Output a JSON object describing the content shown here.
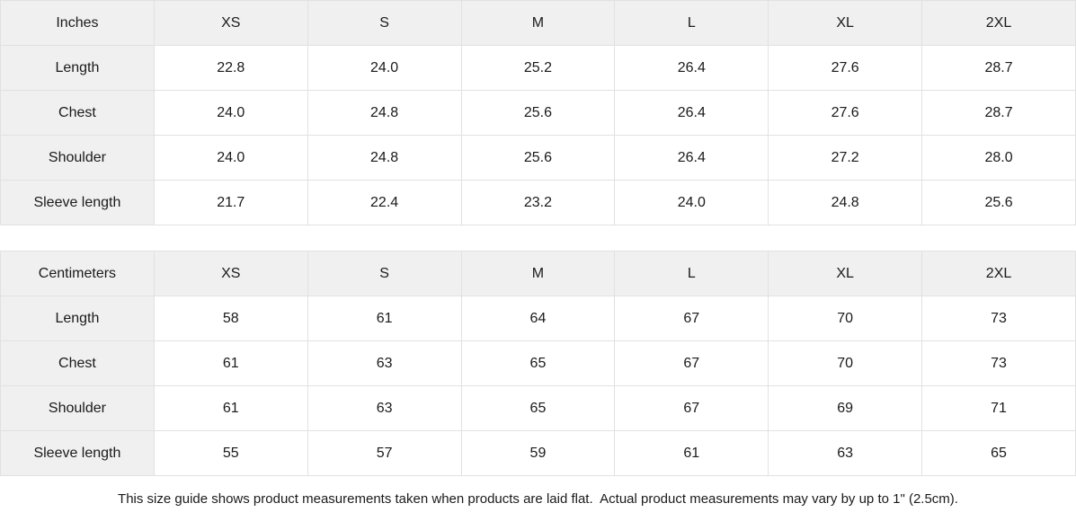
{
  "colors": {
    "background": "#ffffff",
    "header_bg": "#f0f0f1",
    "border": "#e1e1e1",
    "text": "#1a1a1a"
  },
  "chart_data": [
    {
      "type": "table",
      "title": "Inches",
      "columns": [
        "Inches",
        "XS",
        "S",
        "M",
        "L",
        "XL",
        "2XL"
      ],
      "rows": [
        [
          "Length",
          "22.8",
          "24.0",
          "25.2",
          "26.4",
          "27.6",
          "28.7"
        ],
        [
          "Chest",
          "24.0",
          "24.8",
          "25.6",
          "26.4",
          "27.6",
          "28.7"
        ],
        [
          "Shoulder",
          "24.0",
          "24.8",
          "25.6",
          "26.4",
          "27.2",
          "28.0"
        ],
        [
          "Sleeve length",
          "21.7",
          "22.4",
          "23.2",
          "24.0",
          "24.8",
          "25.6"
        ]
      ]
    },
    {
      "type": "table",
      "title": "Centimeters",
      "columns": [
        "Centimeters",
        "XS",
        "S",
        "M",
        "L",
        "XL",
        "2XL"
      ],
      "rows": [
        [
          "Length",
          "58",
          "61",
          "64",
          "67",
          "70",
          "73"
        ],
        [
          "Chest",
          "61",
          "63",
          "65",
          "67",
          "70",
          "73"
        ],
        [
          "Shoulder",
          "61",
          "63",
          "65",
          "67",
          "69",
          "71"
        ],
        [
          "Sleeve length",
          "55",
          "57",
          "59",
          "61",
          "63",
          "65"
        ]
      ]
    }
  ],
  "footer": {
    "note": "This size guide shows product measurements taken when products are laid flat.  Actual product measurements may vary by up to 1\" (2.5cm)."
  }
}
